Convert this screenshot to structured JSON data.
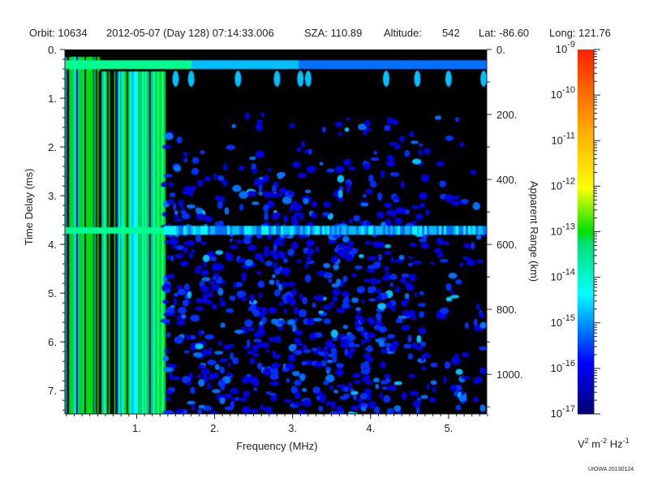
{
  "header": {
    "orbit": "Orbit: 10634",
    "datetime": "2012-05-07 (Day 128) 07:14:33.006",
    "sza": "SZA: 110.89",
    "altitude_label": "Altitude:",
    "altitude_value": "542",
    "lat": "Lat: -86.60",
    "long": "Long: 121.76"
  },
  "chart_data": {
    "type": "heatmap",
    "title": "Orbit: 10634 2012-05-07 (Day 128) 07:14:33.006",
    "xlabel": "Frequency (MHz)",
    "ylabel": "Time Delay (ms)",
    "y2label": "Apparent Range (km)",
    "xlim": [
      0.08,
      5.49
    ],
    "ylim": [
      7.48,
      0
    ],
    "x_ticks": [
      "1.",
      "2.",
      "3.",
      "4.",
      "5."
    ],
    "x_tick_values": [
      1,
      2,
      3,
      4,
      5
    ],
    "y_ticks": [
      "0.",
      "1.",
      "2.",
      "3.",
      "4.",
      "5.",
      "6.",
      "7."
    ],
    "y_tick_values": [
      0,
      1,
      2,
      3,
      4,
      5,
      6,
      7
    ],
    "y2_ticks": [
      "0.",
      "200.",
      "400.",
      "600.",
      "800.",
      "1000."
    ],
    "y2_tick_values": [
      0,
      200,
      400,
      600,
      800,
      1000
    ],
    "colorbar": {
      "scale": "log",
      "range": [
        -17,
        -9
      ],
      "labels": [
        {
          "base": "10",
          "exp": "-9"
        },
        {
          "base": "10",
          "exp": "-10"
        },
        {
          "base": "10",
          "exp": "-11"
        },
        {
          "base": "10",
          "exp": "-12"
        },
        {
          "base": "10",
          "exp": "-13"
        },
        {
          "base": "10",
          "exp": "-14"
        },
        {
          "base": "10",
          "exp": "-15"
        },
        {
          "base": "10",
          "exp": "-16"
        },
        {
          "base": "10",
          "exp": "-17"
        }
      ],
      "unit": {
        "v": "V",
        "v_exp": "2",
        "m": " m",
        "m_exp": "-2",
        "hz": " Hz",
        "hz_exp": "-1"
      }
    },
    "features": [
      {
        "name": "local plasma harmonics",
        "freq_range_mhz": [
          0.08,
          1.35
        ],
        "intensity_log": -13.5
      },
      {
        "name": "horizontal band",
        "delay_ms": 0.3,
        "intensity_log": -15
      },
      {
        "name": "surface reflection band",
        "delay_ms": 3.7,
        "intensity_log": -15
      }
    ]
  },
  "footer": {
    "credit": "UIOWA 20130124"
  }
}
